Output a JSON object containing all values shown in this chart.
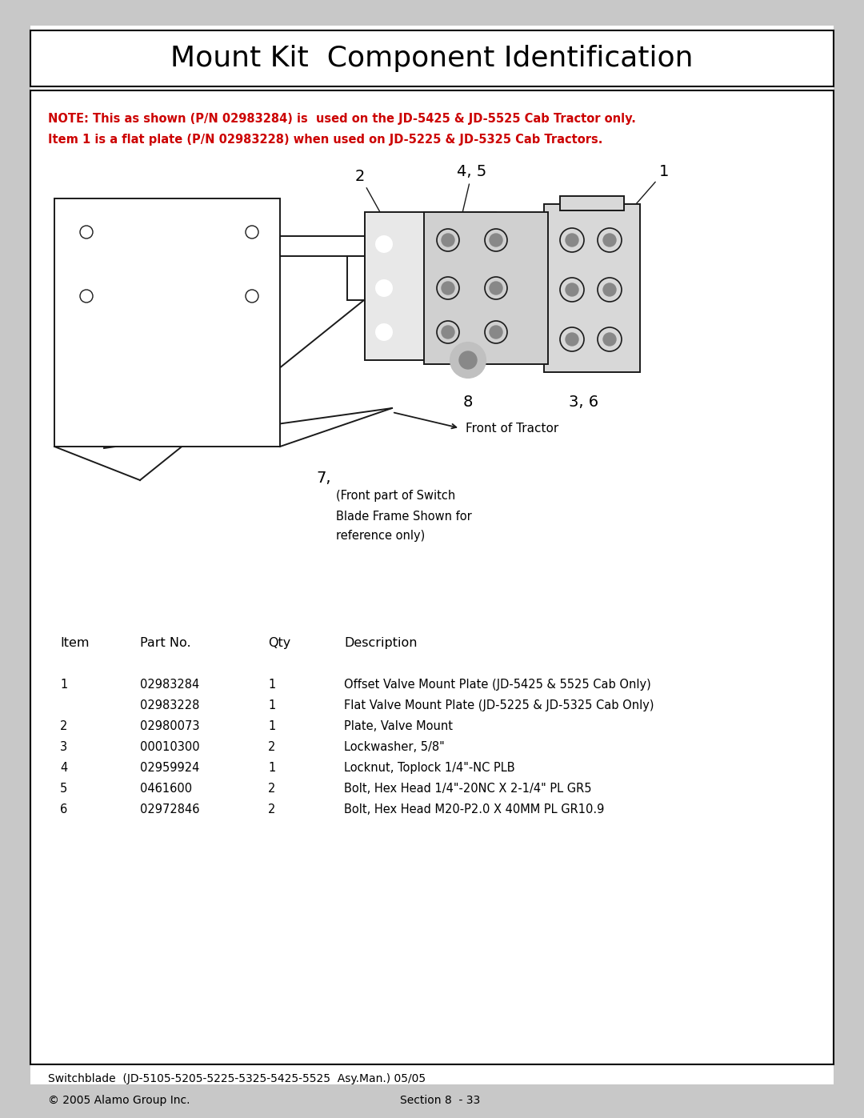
{
  "title": "Mount Kit  Component Identification",
  "note_line1": "NOTE: This as shown (P/N 02983284) is  used on the JD-5425 & JD-5525 Cab Tractor only.",
  "note_line2": "Item 1 is a flat plate (P/N 02983228) when used on JD-5225 & JD-5325 Cab Tractors.",
  "note_color": "#cc0000",
  "bg_color": "#ffffff",
  "page_bg": "#c8c8c8",
  "table_headers": [
    "Item",
    "Part No.",
    "Qty",
    "Description"
  ],
  "table_rows": [
    [
      "1",
      "02983284",
      "1",
      "Offset Valve Mount Plate (JD-5425 & 5525 Cab Only)"
    ],
    [
      "",
      "02983228",
      "1",
      "Flat Valve Mount Plate (JD-5225 & JD-5325 Cab Only)"
    ],
    [
      "2",
      "02980073",
      "1",
      "Plate, Valve Mount"
    ],
    [
      "3",
      "00010300",
      "2",
      "Lockwasher, 5/8\""
    ],
    [
      "4",
      "02959924",
      "1",
      "Locknut, Toplock 1/4\"-NC PLB"
    ],
    [
      "5",
      "0461600",
      "2",
      "Bolt, Hex Head 1/4\"-20NC X 2-1/4\" PL GR5"
    ],
    [
      "6",
      "02972846",
      "2",
      "Bolt, Hex Head M20-P2.0 X 40MM PL GR10.9"
    ]
  ],
  "footer_left1": "Switchblade  (JD-5105-5205-5225-5325-5425-5525  Asy.Man.) 05/05",
  "footer_left2": "© 2005 Alamo Group Inc.",
  "footer_right": "Section 8  - 33"
}
